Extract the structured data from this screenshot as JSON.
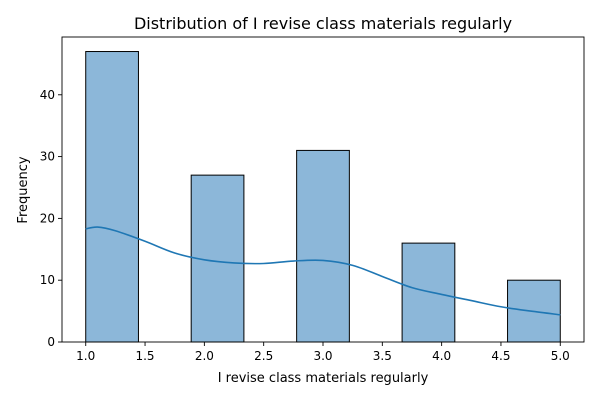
{
  "chart_data": {
    "type": "bar",
    "title": "Distribution of I revise class materials regularly",
    "xlabel": "I revise class materials regularly",
    "ylabel": "Frequency",
    "xlim": [
      0.8,
      5.2
    ],
    "ylim": [
      0,
      49.35
    ],
    "x_ticks": [
      1.0,
      1.5,
      2.0,
      2.5,
      3.0,
      3.5,
      4.0,
      4.5,
      5.0
    ],
    "x_tick_labels": [
      "1.0",
      "1.5",
      "2.0",
      "2.5",
      "3.0",
      "3.5",
      "4.0",
      "4.5",
      "5.0"
    ],
    "y_ticks": [
      0,
      10,
      20,
      30,
      40
    ],
    "y_tick_labels": [
      "0",
      "10",
      "20",
      "30",
      "40"
    ],
    "bins": [
      {
        "x0": 1.0,
        "x1": 1.4444,
        "value": 47
      },
      {
        "x0": 1.8889,
        "x1": 2.3333,
        "value": 27
      },
      {
        "x0": 2.7778,
        "x1": 3.2222,
        "value": 31
      },
      {
        "x0": 3.6667,
        "x1": 4.1111,
        "value": 16
      },
      {
        "x0": 4.5556,
        "x1": 5.0,
        "value": 10
      }
    ],
    "kde": {
      "x": [
        1.0,
        1.1,
        1.25,
        1.5,
        1.75,
        2.0,
        2.25,
        2.5,
        2.75,
        3.0,
        3.25,
        3.5,
        3.75,
        4.0,
        4.25,
        4.5,
        4.75,
        5.0
      ],
      "y": [
        18.3,
        18.6,
        18.0,
        16.3,
        14.4,
        13.3,
        12.8,
        12.7,
        13.1,
        13.2,
        12.4,
        10.6,
        8.8,
        7.7,
        6.7,
        5.7,
        5.0,
        4.4
      ]
    },
    "grid": false,
    "colors": {
      "bar_fill": "#8cb7d9",
      "bar_edge": "#000000",
      "kde_line": "#1f77b4"
    }
  }
}
